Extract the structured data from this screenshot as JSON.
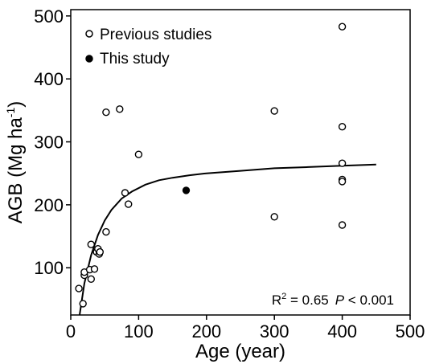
{
  "chart_data": {
    "type": "scatter",
    "xlabel": "Age (year)",
    "ylabel": "AGB (Mg ha",
    "ylabel_sup": "-1",
    "ylabel_close": ")",
    "xlim": [
      0,
      500
    ],
    "ylim": [
      25,
      510
    ],
    "x_ticks": [
      0,
      100,
      200,
      300,
      400,
      500
    ],
    "y_ticks": [
      100,
      200,
      300,
      400,
      500
    ],
    "grid": false,
    "legend_position": "top-left",
    "series": [
      {
        "name": "Previous studies",
        "marker": "open-circle",
        "points": [
          {
            "x": 12,
            "y": 67
          },
          {
            "x": 18,
            "y": 43
          },
          {
            "x": 20,
            "y": 88
          },
          {
            "x": 20,
            "y": 93
          },
          {
            "x": 28,
            "y": 97
          },
          {
            "x": 30,
            "y": 82
          },
          {
            "x": 30,
            "y": 137
          },
          {
            "x": 35,
            "y": 98
          },
          {
            "x": 38,
            "y": 125
          },
          {
            "x": 40,
            "y": 130
          },
          {
            "x": 42,
            "y": 122
          },
          {
            "x": 43,
            "y": 125
          },
          {
            "x": 52,
            "y": 157
          },
          {
            "x": 52,
            "y": 347
          },
          {
            "x": 72,
            "y": 352
          },
          {
            "x": 80,
            "y": 219
          },
          {
            "x": 85,
            "y": 201
          },
          {
            "x": 100,
            "y": 280
          },
          {
            "x": 300,
            "y": 349
          },
          {
            "x": 300,
            "y": 181
          },
          {
            "x": 400,
            "y": 483
          },
          {
            "x": 400,
            "y": 324
          },
          {
            "x": 400,
            "y": 266
          },
          {
            "x": 400,
            "y": 240
          },
          {
            "x": 400,
            "y": 237
          },
          {
            "x": 400,
            "y": 168
          }
        ]
      },
      {
        "name": "This study",
        "marker": "filled-circle",
        "points": [
          {
            "x": 170,
            "y": 223
          }
        ]
      }
    ],
    "fit_curve": {
      "x": [
        13,
        20,
        30,
        40,
        50,
        60,
        75,
        90,
        110,
        130,
        150,
        175,
        200,
        250,
        300,
        350,
        400,
        450
      ],
      "y": [
        25,
        75,
        120,
        152,
        175,
        192,
        210,
        221,
        232,
        239,
        243,
        247,
        250,
        254,
        258,
        260,
        262,
        264
      ]
    },
    "annotation": {
      "r2_prefix": "R",
      "r2_sup": "2",
      "r2_value": " = 0.65",
      "p_label": "P",
      "p_value": " < 0.001"
    }
  }
}
